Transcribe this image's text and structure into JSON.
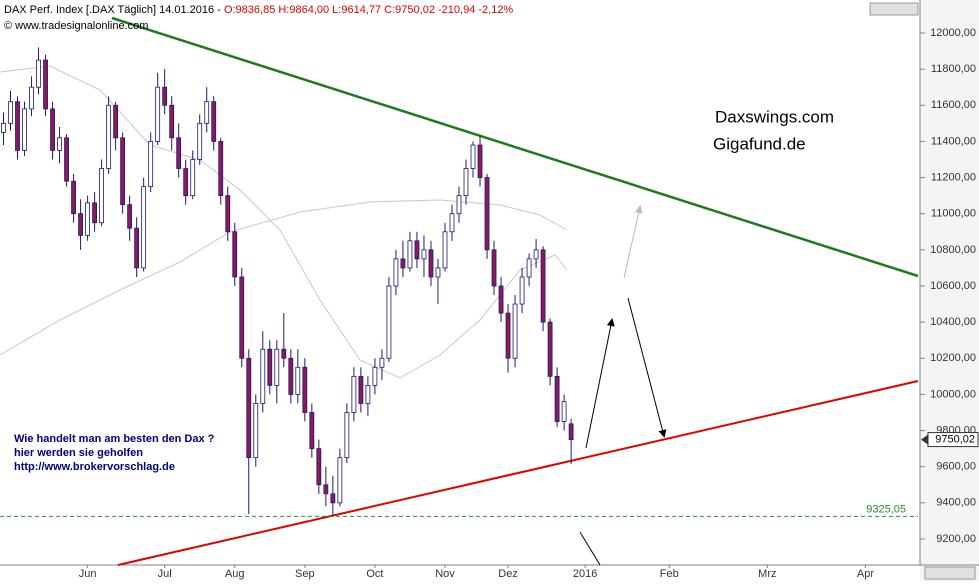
{
  "header": {
    "symbol": "DAX Perf. Index [.DAX  Täglich]",
    "date": "14.01.2016 -",
    "quote": "O:9836,85 H:9864,00 L:9614,77 C:9750,02 -210,94 -2,12%",
    "copyright": "© www.tradesignalonline.com"
  },
  "annotations": {
    "site1": "Daxswings.com",
    "site2": "Gigafund.de",
    "promo1": "Wie handelt man am besten  den Dax ?",
    "promo2": "hier werden sie geholfen",
    "promo3": "http://www.brokervorschlag.de"
  },
  "chart_data": {
    "type": "candlestick",
    "up_color": "#ffffff",
    "down_color": "#8b1a5a",
    "outline_color": "#1a1a6e",
    "ylim": [
      9056,
      12083
    ],
    "yticks": [
      {
        "value": 9200,
        "label": "9200,00"
      },
      {
        "value": 9400,
        "label": "9400,00"
      },
      {
        "value": 9600,
        "label": "9600,00"
      },
      {
        "value": 9800,
        "label": "9800,00"
      },
      {
        "value": 10000,
        "label": "10000,00"
      },
      {
        "value": 10200,
        "label": "10200,00"
      },
      {
        "value": 10400,
        "label": "10400,00"
      },
      {
        "value": 10600,
        "label": "10600,00"
      },
      {
        "value": 10800,
        "label": "10800,00"
      },
      {
        "value": 11000,
        "label": "11000,00"
      },
      {
        "value": 11200,
        "label": "11200,00"
      },
      {
        "value": 11400,
        "label": "11400,00"
      },
      {
        "value": 11600,
        "label": "11600,00"
      },
      {
        "value": 11800,
        "label": "11800,00"
      },
      {
        "value": 12000,
        "label": "12000,00"
      }
    ],
    "hline": {
      "value": 9325.05,
      "label": "9325,05",
      "color": "#2e8b2e"
    },
    "last": {
      "value": 9750.02,
      "label": "9750,02"
    },
    "categories": [
      null,
      null,
      null,
      null,
      null,
      null,
      null,
      null,
      null,
      null,
      null,
      null,
      "Jun",
      null,
      null,
      null,
      null,
      null,
      null,
      null,
      null,
      null,
      null,
      "Jul",
      null,
      null,
      null,
      null,
      null,
      null,
      null,
      null,
      null,
      "Aug",
      null,
      null,
      null,
      null,
      null,
      null,
      null,
      null,
      null,
      "Sep",
      null,
      null,
      null,
      null,
      null,
      null,
      null,
      null,
      null,
      "Oct",
      null,
      null,
      null,
      null,
      null,
      null,
      null,
      null,
      null,
      "Nov",
      null,
      null,
      null,
      null,
      null,
      null,
      null,
      null,
      "Dez",
      null,
      null,
      null,
      null,
      null,
      null,
      null,
      null,
      null,
      null,
      "2016",
      null,
      null,
      null,
      null,
      null,
      null,
      null,
      null,
      null,
      null,
      null,
      "Feb",
      null,
      null,
      null,
      null,
      null,
      null,
      null,
      null,
      null,
      null,
      null,
      null,
      null,
      "Mrz",
      null,
      null,
      null,
      null,
      null,
      null,
      null,
      null,
      null,
      null,
      null,
      null,
      null,
      "Apr",
      null,
      null,
      null,
      null,
      null,
      null,
      null
    ],
    "series": [
      {
        "name": "DAX",
        "ohlc": [
          [
            11450,
            11560,
            11380,
            11500
          ],
          [
            11500,
            11680,
            11460,
            11620
          ],
          [
            11620,
            11650,
            11300,
            11350
          ],
          [
            11350,
            11620,
            11320,
            11580
          ],
          [
            11580,
            11760,
            11540,
            11700
          ],
          [
            11700,
            11920,
            11660,
            11850
          ],
          [
            11850,
            11880,
            11540,
            11580
          ],
          [
            11580,
            11620,
            11300,
            11350
          ],
          [
            11350,
            11480,
            11280,
            11420
          ],
          [
            11420,
            11440,
            11150,
            11180
          ],
          [
            11180,
            11220,
            10950,
            11000
          ],
          [
            11000,
            11080,
            10800,
            10880
          ],
          [
            10880,
            11100,
            10850,
            11060
          ],
          [
            11060,
            11120,
            10900,
            10950
          ],
          [
            10950,
            11300,
            10930,
            11250
          ],
          [
            11250,
            11650,
            11220,
            11600
          ],
          [
            11600,
            11620,
            11350,
            11420
          ],
          [
            11420,
            11450,
            11000,
            11050
          ],
          [
            11050,
            11100,
            10850,
            10920
          ],
          [
            10920,
            10980,
            10650,
            10700
          ],
          [
            10700,
            11200,
            10680,
            11150
          ],
          [
            11150,
            11450,
            11120,
            11400
          ],
          [
            11400,
            11780,
            11380,
            11700
          ],
          [
            11700,
            11800,
            11550,
            11600
          ],
          [
            11600,
            11650,
            11350,
            11420
          ],
          [
            11420,
            11500,
            11200,
            11250
          ],
          [
            11250,
            11300,
            11050,
            11100
          ],
          [
            11100,
            11350,
            11080,
            11300
          ],
          [
            11300,
            11550,
            11270,
            11500
          ],
          [
            11500,
            11700,
            11450,
            11620
          ],
          [
            11620,
            11650,
            11350,
            11400
          ],
          [
            11400,
            11420,
            11050,
            11100
          ],
          [
            11100,
            11150,
            10850,
            10900
          ],
          [
            10900,
            10950,
            10600,
            10650
          ],
          [
            10650,
            10700,
            10150,
            10200
          ],
          [
            10200,
            10250,
            9338,
            9650
          ],
          [
            9650,
            10000,
            9600,
            9950
          ],
          [
            9950,
            10350,
            9900,
            10250
          ],
          [
            10250,
            10300,
            10000,
            10050
          ],
          [
            10050,
            10300,
            9950,
            10250
          ],
          [
            10250,
            10450,
            10150,
            10200
          ],
          [
            10200,
            10250,
            9950,
            10000
          ],
          [
            10000,
            10250,
            9950,
            10150
          ],
          [
            10150,
            10200,
            9850,
            9900
          ],
          [
            9900,
            9950,
            9650,
            9700
          ],
          [
            9700,
            9750,
            9450,
            9500
          ],
          [
            9500,
            9600,
            9380,
            9450
          ],
          [
            9450,
            9550,
            9325,
            9400
          ],
          [
            9400,
            9700,
            9380,
            9650
          ],
          [
            9650,
            9950,
            9620,
            9900
          ],
          [
            9900,
            10150,
            9850,
            10100
          ],
          [
            10100,
            10150,
            9900,
            9950
          ],
          [
            9950,
            10100,
            9880,
            10050
          ],
          [
            10050,
            10200,
            10000,
            10150
          ],
          [
            10150,
            10250,
            10080,
            10200
          ],
          [
            10200,
            10650,
            10180,
            10600
          ],
          [
            10600,
            10800,
            10550,
            10750
          ],
          [
            10750,
            10850,
            10650,
            10700
          ],
          [
            10700,
            10900,
            10680,
            10850
          ],
          [
            10850,
            10900,
            10700,
            10750
          ],
          [
            10750,
            10880,
            10650,
            10800
          ],
          [
            10800,
            10850,
            10600,
            10650
          ],
          [
            10650,
            10750,
            10500,
            10700
          ],
          [
            10700,
            10950,
            10680,
            10900
          ],
          [
            10900,
            11050,
            10850,
            11000
          ],
          [
            11000,
            11150,
            10950,
            11100
          ],
          [
            11100,
            11300,
            11050,
            11250
          ],
          [
            11250,
            11400,
            11200,
            11380
          ],
          [
            11380,
            11430,
            11150,
            11200
          ],
          [
            11200,
            11220,
            10750,
            10800
          ],
          [
            10800,
            10850,
            10550,
            10600
          ],
          [
            10600,
            10650,
            10400,
            10450
          ],
          [
            10450,
            10500,
            10120,
            10200
          ],
          [
            10200,
            10550,
            10150,
            10500
          ],
          [
            10500,
            10700,
            10450,
            10650
          ],
          [
            10650,
            10780,
            10600,
            10750
          ],
          [
            10750,
            10860,
            10700,
            10800
          ],
          [
            10800,
            10820,
            10350,
            10400
          ],
          [
            10400,
            10420,
            10050,
            10100
          ],
          [
            10100,
            10150,
            9820,
            9850
          ],
          [
            9850,
            10000,
            9800,
            9960
          ],
          [
            9836.85,
            9864,
            9614.77,
            9750.02
          ],
          null,
          null,
          null,
          null,
          null,
          null,
          null,
          null,
          null,
          null,
          null,
          null,
          null,
          null,
          null,
          null,
          null,
          null,
          null,
          null,
          null,
          null,
          null,
          null,
          null,
          null,
          null,
          null,
          null,
          null,
          null,
          null,
          null,
          null,
          null,
          null,
          null,
          null,
          null,
          null,
          null,
          null,
          null,
          null,
          null,
          null,
          null,
          null,
          null
        ]
      }
    ]
  }
}
